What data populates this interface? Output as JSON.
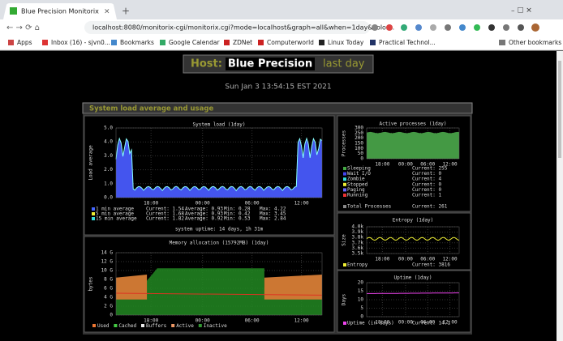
{
  "browser": {
    "tab_title": "Blue Precision Monitorix",
    "url": "localhost:8080/monitorix-cgi/monitorix.cgi?mode=localhost&graph=all&when=1day&color...",
    "bookmarks": [
      "Apps",
      "Inbox (16) - sjvn0...",
      "Bookmarks",
      "Google Calendar",
      "ZDNet",
      "Computerworld",
      "Linux Today",
      "Practical Technol..."
    ],
    "other_bookmarks": "Other bookmarks"
  },
  "header": {
    "host_label": "Host:",
    "host": "Blue Precision",
    "period": "last day",
    "date": "Sun Jan 3 13:54:15 EST 2021"
  },
  "section_title": "System load average and usage",
  "graphs": [
    {
      "title": "System load  (1day)",
      "y_label": "Load average",
      "yticks": [
        "5.0",
        "4.0",
        "3.0",
        "2.0",
        "1.0",
        "0.0"
      ],
      "xticks": [
        "18:00",
        "00:00",
        "06:00",
        "12:00"
      ],
      "legend_colors": [
        "#4466ff",
        "#eeee33",
        "#33dddd"
      ],
      "legend": [
        [
          "1 min average",
          "Current: 1.54",
          "Average: 0.93",
          "Min: 0.28",
          "Max: 4.22"
        ],
        [
          "5 min average",
          "Current: 1.68",
          "Average: 0.93",
          "Min: 0.42",
          "Max: 3.45"
        ],
        [
          "15 min average",
          "Current: 1.82",
          "Average: 0.92",
          "Min: 0.53",
          "Max: 2.84"
        ]
      ],
      "footer": "system uptime: 14 days, 1h 31m"
    },
    {
      "title": "Memory allocation (15792MB)  (1day)",
      "y_label": "bytes",
      "yticks": [
        "14 G",
        "12 G",
        "10 G",
        "8 G",
        "6 G",
        "4 G",
        "2 G",
        "0"
      ],
      "xticks": [
        "18:00",
        "00:00",
        "06:00",
        "12:00"
      ],
      "legend_colors": [
        "#ee7733",
        "#44cc44",
        "#eeeeee",
        "#ee9966",
        "#339933"
      ],
      "legend": [
        [
          "Used"
        ],
        [
          "Cached"
        ],
        [
          "Buffers"
        ],
        [
          "Active"
        ],
        [
          "Inactive"
        ]
      ]
    },
    {
      "title": "Active processes  (1day)",
      "y_label": "Processes",
      "yticks": [
        "300",
        "250",
        "200",
        "150",
        "100",
        "50",
        "0"
      ],
      "xticks": [
        "18:00",
        "00:00",
        "06:00",
        "12:00"
      ],
      "legend_colors": [
        "#44aa44",
        "#4444ee",
        "#33dddd",
        "#eeee33",
        "#6666ff",
        "#ee3333",
        "#888888"
      ],
      "legend": [
        [
          "Sleeping",
          "Current:  255"
        ],
        [
          "Wait I/O",
          "Current:    0"
        ],
        [
          "Zombie",
          "Current:    4"
        ],
        [
          "Stopped",
          "Current:    0"
        ],
        [
          "Paging",
          "Current:    0"
        ],
        [
          "Running",
          "Current:    1"
        ],
        [
          "Total Processes",
          "Current:  261"
        ]
      ]
    },
    {
      "title": "Entropy  (1day)",
      "y_label": "Size",
      "yticks": [
        "4.0k",
        "3.9k",
        "3.8k",
        "3.7k",
        "3.6k",
        "3.5k"
      ],
      "xticks": [
        "18:00",
        "00:00",
        "06:00",
        "12:00"
      ],
      "legend_colors": [
        "#eeee33"
      ],
      "legend": [
        [
          "Entropy",
          "Current: 3816"
        ]
      ]
    },
    {
      "title": "Uptime  (1day)",
      "y_label": "Days",
      "yticks": [
        "20",
        "15",
        "10",
        "5",
        "0"
      ],
      "xticks": [
        "18:00",
        "00:00",
        "06:00",
        "12:00"
      ],
      "legend_colors": [
        "#ee44ee"
      ],
      "legend": [
        [
          "Uptime  (in days)",
          "Current: 14.1"
        ]
      ]
    }
  ]
}
